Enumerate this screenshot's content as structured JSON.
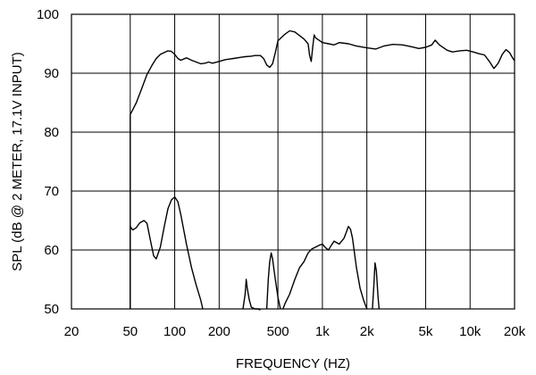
{
  "chart_data": {
    "type": "line",
    "xlabel": "FREQUENCY  (HZ)",
    "ylabel": "SPL (dB @ 2 METER, 17.1V    INPUT)",
    "x_scale": "log",
    "xlim": [
      20,
      20000
    ],
    "ylim": [
      50,
      100
    ],
    "grid": true,
    "x_ticks": [
      {
        "value": 20,
        "label": "20"
      },
      {
        "value": 50,
        "label": "50"
      },
      {
        "value": 100,
        "label": "100"
      },
      {
        "value": 200,
        "label": "200"
      },
      {
        "value": 500,
        "label": "500"
      },
      {
        "value": 1000,
        "label": "1k"
      },
      {
        "value": 2000,
        "label": "2k"
      },
      {
        "value": 5000,
        "label": "5k"
      },
      {
        "value": 10000,
        "label": "10k"
      },
      {
        "value": 20000,
        "label": "20k"
      }
    ],
    "y_ticks": [
      {
        "value": 50,
        "label": "50"
      },
      {
        "value": 60,
        "label": "60"
      },
      {
        "value": 70,
        "label": "70"
      },
      {
        "value": 80,
        "label": "80"
      },
      {
        "value": 90,
        "label": "90"
      },
      {
        "value": 100,
        "label": "100"
      }
    ],
    "series": [
      {
        "points": [
          [
            50,
            50
          ],
          [
            50,
            83
          ],
          [
            52,
            83.8
          ],
          [
            55,
            85
          ],
          [
            60,
            87.5
          ],
          [
            65,
            89.8
          ],
          [
            70,
            91.3
          ],
          [
            75,
            92.5
          ],
          [
            80,
            93.2
          ],
          [
            90,
            93.8
          ],
          [
            95,
            93.7
          ],
          [
            100,
            93.2
          ],
          [
            105,
            92.5
          ],
          [
            110,
            92.2
          ],
          [
            120,
            92.6
          ],
          [
            130,
            92.2
          ],
          [
            140,
            91.9
          ],
          [
            150,
            91.6
          ],
          [
            160,
            91.7
          ],
          [
            170,
            91.9
          ],
          [
            180,
            91.7
          ],
          [
            200,
            92.0
          ],
          [
            220,
            92.3
          ],
          [
            250,
            92.5
          ],
          [
            280,
            92.7
          ],
          [
            300,
            92.8
          ],
          [
            330,
            92.9
          ],
          [
            350,
            93.0
          ],
          [
            380,
            93.0
          ],
          [
            400,
            92.5
          ],
          [
            420,
            91.4
          ],
          [
            440,
            91.0
          ],
          [
            460,
            91.6
          ],
          [
            480,
            93.5
          ],
          [
            500,
            95.5
          ],
          [
            550,
            96.5
          ],
          [
            600,
            97.2
          ],
          [
            650,
            97.0
          ],
          [
            700,
            96.4
          ],
          [
            750,
            95.8
          ],
          [
            800,
            95.0
          ],
          [
            820,
            93.0
          ],
          [
            840,
            92.0
          ],
          [
            860,
            94.5
          ],
          [
            880,
            96.5
          ],
          [
            900,
            96.0
          ],
          [
            1000,
            95.2
          ],
          [
            1100,
            95.0
          ],
          [
            1200,
            94.8
          ],
          [
            1300,
            95.2
          ],
          [
            1500,
            95.0
          ],
          [
            1700,
            94.6
          ],
          [
            2000,
            94.3
          ],
          [
            2300,
            94.1
          ],
          [
            2600,
            94.6
          ],
          [
            3000,
            94.9
          ],
          [
            3500,
            94.8
          ],
          [
            4000,
            94.5
          ],
          [
            4500,
            94.2
          ],
          [
            5000,
            94.4
          ],
          [
            5500,
            94.8
          ],
          [
            5800,
            95.6
          ],
          [
            6200,
            94.8
          ],
          [
            7000,
            93.9
          ],
          [
            7600,
            93.6
          ],
          [
            8500,
            93.8
          ],
          [
            9500,
            93.9
          ],
          [
            10500,
            93.6
          ],
          [
            11500,
            93.3
          ],
          [
            12500,
            93.1
          ],
          [
            13500,
            92.0
          ],
          [
            14500,
            90.8
          ],
          [
            15500,
            91.7
          ],
          [
            16500,
            93.2
          ],
          [
            17500,
            94.0
          ],
          [
            18500,
            93.5
          ],
          [
            19500,
            92.5
          ],
          [
            20000,
            92.1
          ]
        ]
      },
      {
        "points": [
          [
            50,
            50
          ],
          [
            50,
            64
          ],
          [
            52,
            63.4
          ],
          [
            55,
            63.8
          ],
          [
            58,
            64.6
          ],
          [
            62,
            65.0
          ],
          [
            65,
            64.5
          ],
          [
            68,
            62.0
          ],
          [
            72,
            59.0
          ],
          [
            75,
            58.5
          ],
          [
            80,
            60.5
          ],
          [
            85,
            64.0
          ],
          [
            90,
            67.0
          ],
          [
            95,
            68.5
          ],
          [
            100,
            69.0
          ],
          [
            105,
            68.2
          ],
          [
            110,
            66.0
          ],
          [
            120,
            61.0
          ],
          [
            130,
            57.0
          ],
          [
            140,
            54.0
          ],
          [
            150,
            51.5
          ],
          [
            155,
            50.0
          ]
        ]
      },
      {
        "points": [
          [
            290,
            50
          ],
          [
            300,
            52.5
          ],
          [
            305,
            55.0
          ],
          [
            310,
            53.5
          ],
          [
            320,
            51.5
          ],
          [
            330,
            50.3
          ],
          [
            350,
            50.0
          ],
          [
            370,
            50.0
          ],
          [
            380,
            49.8
          ]
        ]
      },
      {
        "points": [
          [
            420,
            50
          ],
          [
            430,
            55.0
          ],
          [
            440,
            58.0
          ],
          [
            450,
            59.5
          ],
          [
            460,
            58.5
          ],
          [
            480,
            55.0
          ],
          [
            500,
            52.0
          ],
          [
            520,
            50.0
          ]
        ]
      },
      {
        "points": [
          [
            540,
            50
          ],
          [
            560,
            51.0
          ],
          [
            600,
            52.5
          ],
          [
            650,
            55.0
          ],
          [
            700,
            57.0
          ],
          [
            750,
            58.0
          ],
          [
            800,
            59.5
          ],
          [
            850,
            60.2
          ],
          [
            900,
            60.5
          ],
          [
            950,
            60.8
          ],
          [
            1000,
            61.0
          ],
          [
            1050,
            60.4
          ],
          [
            1100,
            60.0
          ],
          [
            1150,
            60.8
          ],
          [
            1200,
            61.5
          ],
          [
            1300,
            61.0
          ],
          [
            1400,
            62.0
          ],
          [
            1450,
            63.0
          ],
          [
            1500,
            64.0
          ],
          [
            1550,
            63.5
          ],
          [
            1600,
            62.0
          ],
          [
            1700,
            57.0
          ],
          [
            1800,
            53.5
          ],
          [
            1900,
            51.5
          ],
          [
            2000,
            50.0
          ]
        ]
      },
      {
        "points": [
          [
            2180,
            50
          ],
          [
            2230,
            54.0
          ],
          [
            2270,
            57.8
          ],
          [
            2320,
            56.5
          ],
          [
            2380,
            52.0
          ],
          [
            2420,
            50.0
          ]
        ]
      }
    ]
  }
}
